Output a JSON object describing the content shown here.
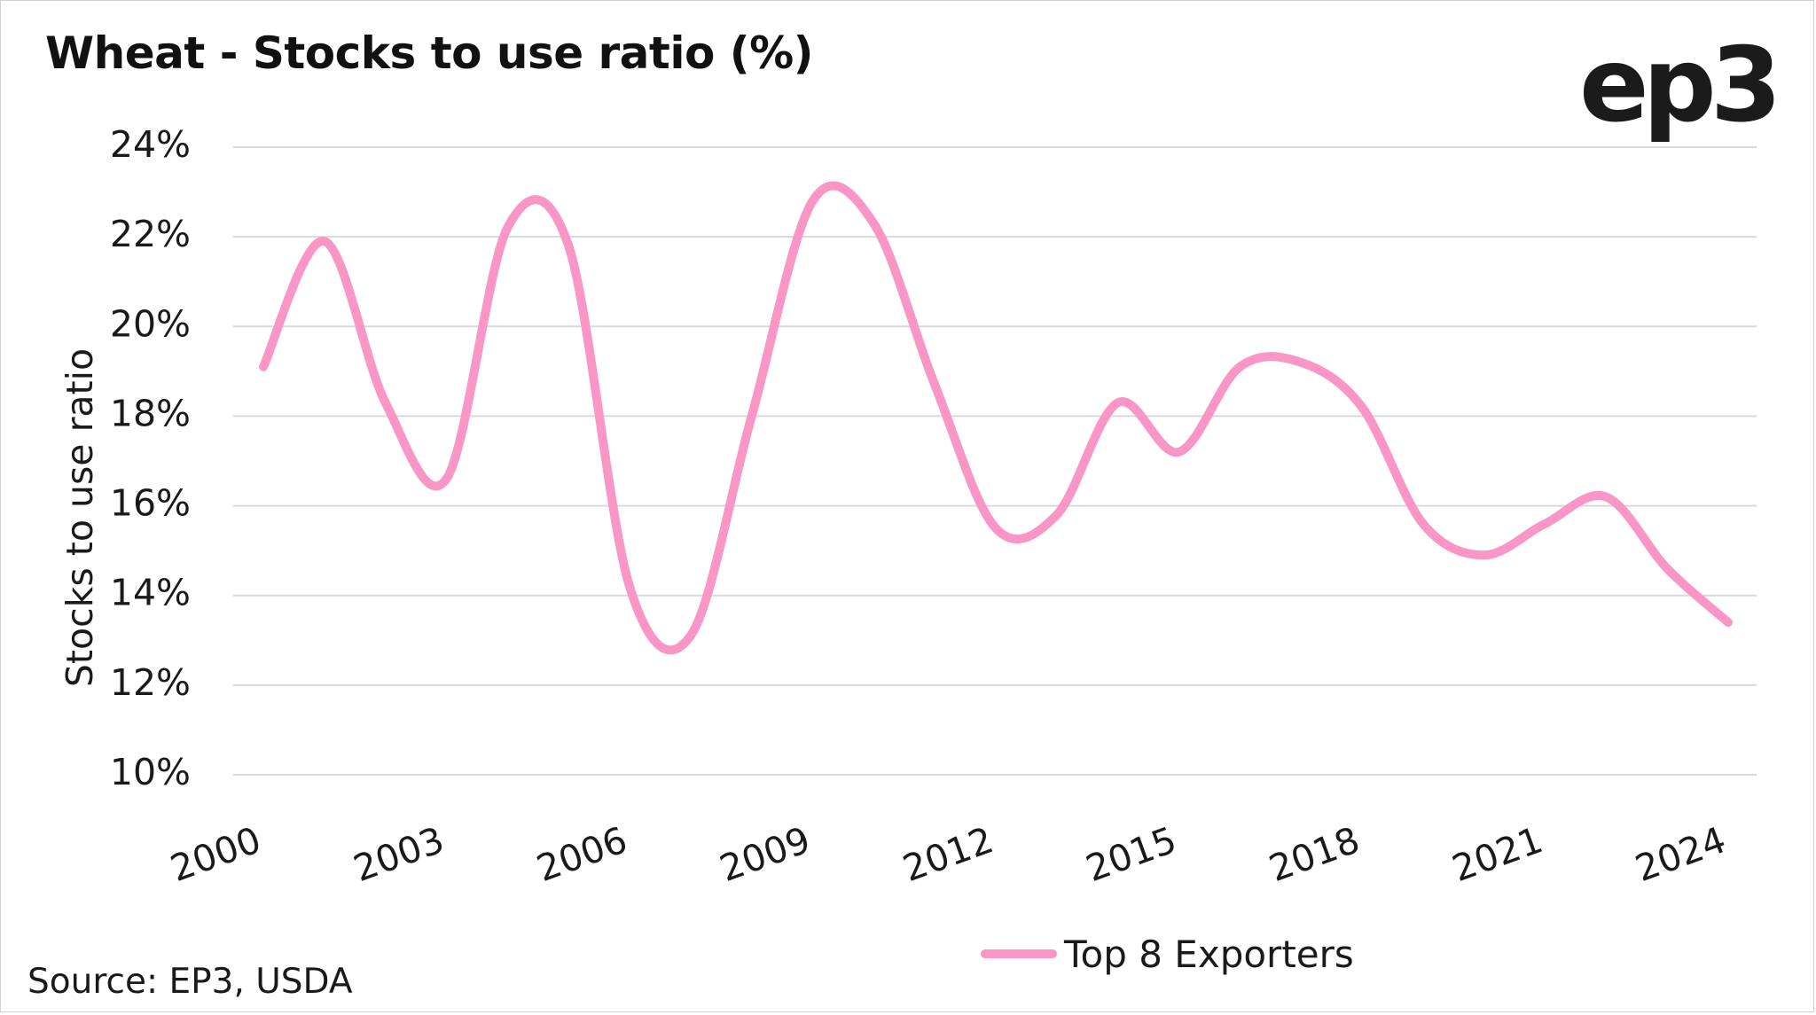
{
  "chart_data": {
    "type": "line",
    "title": "Wheat - Stocks to use ratio (%)",
    "brand": "ep3",
    "source": "Source: EP3, USDA",
    "xlabel": "",
    "ylabel": "Stocks to use ratio",
    "ylim": [
      10,
      24
    ],
    "y_ticks": [
      10,
      12,
      14,
      16,
      18,
      20,
      22,
      24
    ],
    "y_tick_labels": [
      "10%",
      "12%",
      "14%",
      "16%",
      "18%",
      "20%",
      "22%",
      "24%"
    ],
    "x_tick_labels": [
      "2000",
      "2003",
      "2006",
      "2009",
      "2012",
      "2015",
      "2018",
      "2021",
      "2024"
    ],
    "x_ticks": [
      2000,
      2003,
      2006,
      2009,
      2012,
      2015,
      2018,
      2021,
      2024
    ],
    "legend_position": "bottom-center",
    "grid": true,
    "series": [
      {
        "name": "Top 8 Exporters",
        "color": "#f996c6",
        "x": [
          2000,
          2001,
          2002,
          2003,
          2004,
          2005,
          2006,
          2007,
          2008,
          2009,
          2010,
          2011,
          2012,
          2013,
          2014,
          2015,
          2016,
          2017,
          2018,
          2019,
          2020,
          2021,
          2022,
          2023,
          2024
        ],
        "values": [
          19.1,
          21.9,
          18.3,
          16.6,
          22.2,
          21.8,
          14.2,
          13.1,
          18.0,
          22.8,
          22.3,
          18.7,
          15.5,
          15.8,
          18.3,
          17.2,
          19.1,
          19.2,
          18.2,
          15.6,
          14.9,
          15.6,
          16.2,
          14.6,
          13.4
        ]
      }
    ]
  }
}
